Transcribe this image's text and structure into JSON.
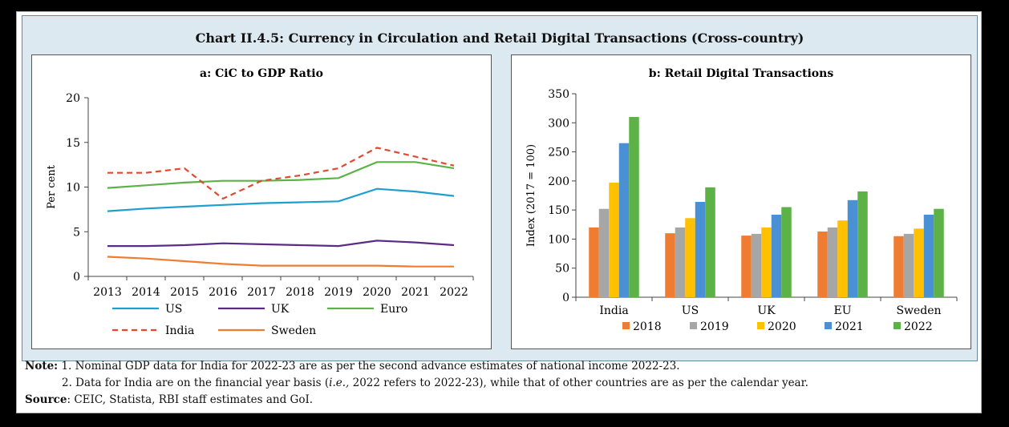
{
  "title": "Chart II.4.5: Currency in Circulation and Retail Digital Transactions (Cross-country)",
  "chart_data": [
    {
      "type": "line",
      "title": "a: CiC to GDP Ratio",
      "ylabel": "Per cent",
      "ylim": [
        0,
        20
      ],
      "yticks": [
        0,
        5,
        10,
        15,
        20
      ],
      "x": [
        "2013",
        "2014",
        "2015",
        "2016",
        "2017",
        "2018",
        "2019",
        "2020",
        "2021",
        "2022"
      ],
      "series": [
        {
          "name": "US",
          "color": "#1f9fd0",
          "dash": false,
          "values": [
            7.3,
            7.6,
            7.8,
            8.0,
            8.2,
            8.3,
            8.4,
            9.8,
            9.5,
            9.0
          ]
        },
        {
          "name": "UK",
          "color": "#5b2c86",
          "dash": false,
          "values": [
            3.4,
            3.4,
            3.5,
            3.7,
            3.6,
            3.5,
            3.4,
            4.0,
            3.8,
            3.5
          ]
        },
        {
          "name": "Euro",
          "color": "#5cb247",
          "dash": false,
          "values": [
            9.9,
            10.2,
            10.5,
            10.7,
            10.7,
            10.8,
            11.0,
            12.8,
            12.8,
            12.1
          ]
        },
        {
          "name": "India",
          "color": "#e04a2f",
          "dash": true,
          "values": [
            11.6,
            11.6,
            12.1,
            8.7,
            10.7,
            11.3,
            12.1,
            14.4,
            13.4,
            12.4
          ]
        },
        {
          "name": "Sweden",
          "color": "#ef7d31",
          "dash": false,
          "values": [
            2.2,
            2.0,
            1.7,
            1.4,
            1.2,
            1.2,
            1.2,
            1.2,
            1.1,
            1.1
          ]
        }
      ],
      "grid": false,
      "legend": "bottom"
    },
    {
      "type": "bar",
      "title": "b: Retail Digital Transactions",
      "ylabel": "Index (2017 = 100)",
      "ylim": [
        0,
        350
      ],
      "yticks": [
        0,
        50,
        100,
        150,
        200,
        250,
        300,
        350
      ],
      "categories": [
        "India",
        "US",
        "UK",
        "EU",
        "Sweden"
      ],
      "series": [
        {
          "name": "2018",
          "color": "#ef7d31",
          "values": [
            120,
            110,
            106,
            113,
            105
          ]
        },
        {
          "name": "2019",
          "color": "#a6a6a6",
          "values": [
            152,
            120,
            109,
            120,
            109
          ]
        },
        {
          "name": "2020",
          "color": "#ffc000",
          "values": [
            197,
            136,
            120,
            132,
            118
          ]
        },
        {
          "name": "2021",
          "color": "#4a90d4",
          "values": [
            265,
            164,
            142,
            167,
            142
          ]
        },
        {
          "name": "2022",
          "color": "#5cb247",
          "values": [
            310,
            189,
            155,
            182,
            152
          ]
        }
      ],
      "grid": false,
      "legend": "bottom"
    }
  ],
  "notes": {
    "note_label": "Note:",
    "note1": "1. Nominal GDP data for India for 2022-23 are as per the second advance estimates of national income 2022-23.",
    "note2_pre": "2. Data for India are on the financial year basis (",
    "note2_ie": "i.e.,",
    "note2_post": " 2022 refers to 2022-23), while that of other countries are as per the calendar year.",
    "source_label": "Source",
    "source": ": CEIC, Statista, RBI staff estimates and GoI."
  }
}
